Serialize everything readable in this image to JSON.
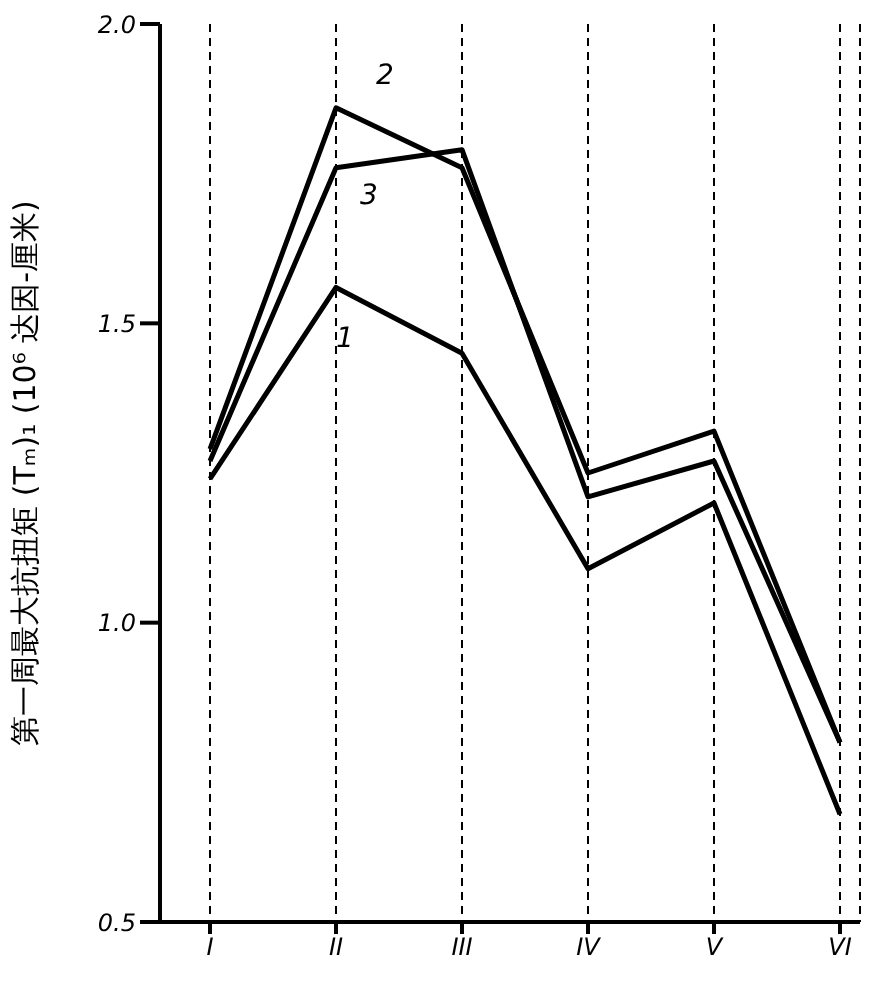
{
  "chart_data": {
    "type": "line",
    "ylabel": "第一周最大抗扭矩 (Tₘ)₁ (10⁶ 达因-厘米)",
    "categories": [
      "I",
      "II",
      "III",
      "IV",
      "V",
      "VI"
    ],
    "series": [
      {
        "name": "1",
        "color": "#000000",
        "values": [
          1.24,
          1.56,
          1.45,
          1.09,
          1.2,
          0.68
        ]
      },
      {
        "name": "2",
        "color": "#000000",
        "values": [
          1.29,
          1.86,
          1.76,
          1.25,
          1.32,
          0.8
        ]
      },
      {
        "name": "3",
        "color": "#000000",
        "values": [
          1.27,
          1.76,
          1.79,
          1.21,
          1.27,
          0.8
        ]
      }
    ],
    "ylim": [
      0.5,
      2.0
    ],
    "yticks": [
      {
        "value": 0.5,
        "label": "0.5"
      },
      {
        "value": 1.0,
        "label": "1.0"
      },
      {
        "value": 1.5,
        "label": "1.5"
      },
      {
        "value": 2.0,
        "label": "2.0"
      }
    ],
    "grid": "x",
    "marker": "none",
    "line_style": "solid",
    "legend": false
  }
}
